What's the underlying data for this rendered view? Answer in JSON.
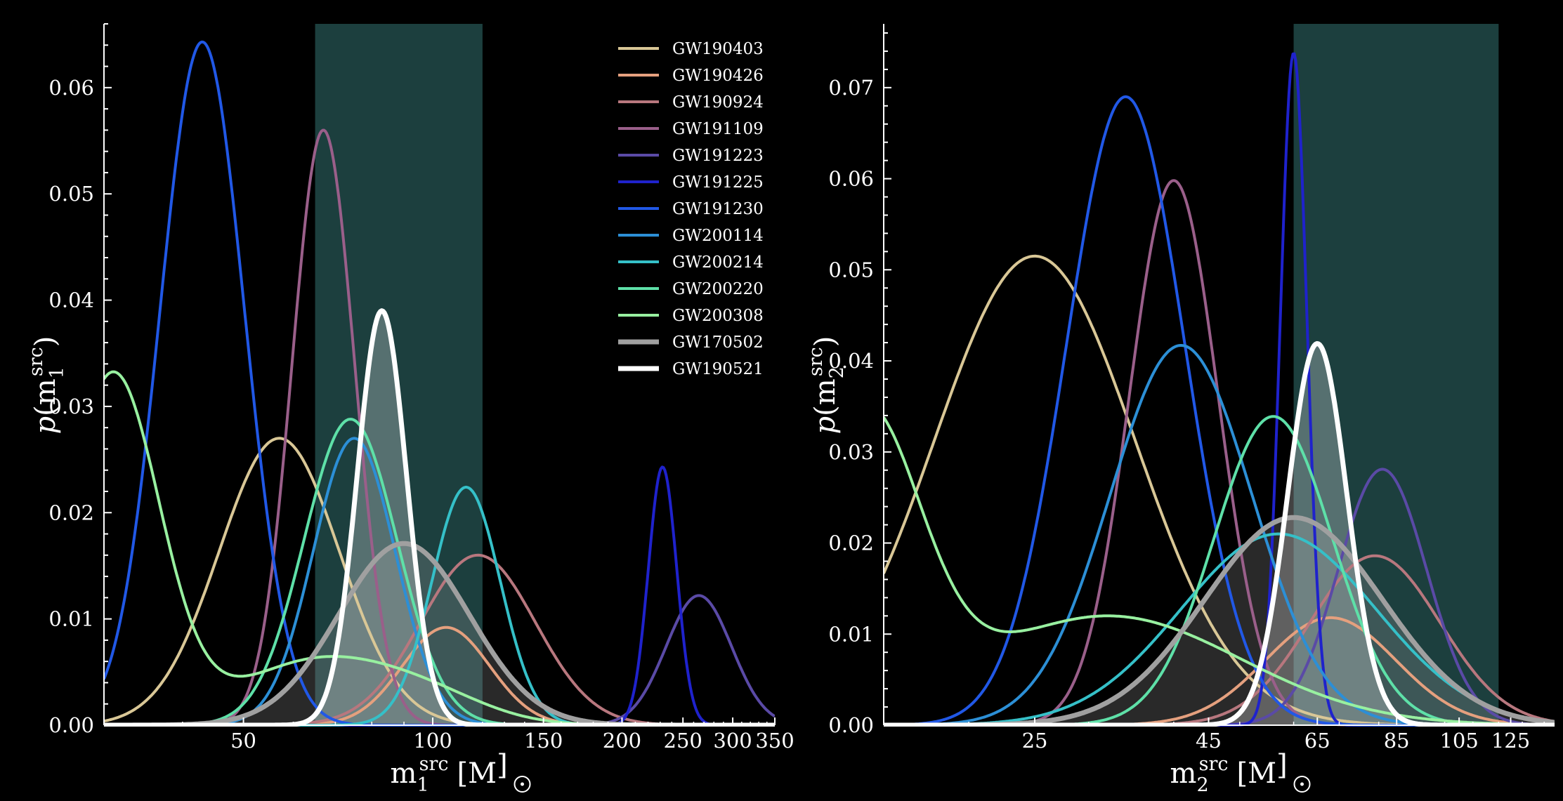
{
  "chart_data": {
    "type": "line",
    "legend": {
      "placement": "top-right of left panel",
      "entries": [
        {
          "name": "GW190403",
          "color": "#d9c796",
          "thick": false
        },
        {
          "name": "GW190426",
          "color": "#e5a07e",
          "thick": false
        },
        {
          "name": "GW190924",
          "color": "#b8777e",
          "thick": false
        },
        {
          "name": "GW191109",
          "color": "#9a5f8a",
          "thick": false
        },
        {
          "name": "GW191223",
          "color": "#5a4aa6",
          "thick": false
        },
        {
          "name": "GW191225",
          "color": "#1f22cc",
          "thick": false
        },
        {
          "name": "GW191230",
          "color": "#2158e6",
          "thick": false
        },
        {
          "name": "GW200114",
          "color": "#2c8fd6",
          "thick": false
        },
        {
          "name": "GW200214",
          "color": "#35c0c8",
          "thick": false
        },
        {
          "name": "GW200220",
          "color": "#5ee0a8",
          "thick": false
        },
        {
          "name": "GW200308",
          "color": "#98f0a0",
          "thick": false
        },
        {
          "name": "GW170502",
          "color": "#a0a0a0",
          "thick": true
        },
        {
          "name": "GW190521",
          "color": "#ffffff",
          "thick": true
        }
      ]
    },
    "panels": [
      {
        "id": "m1",
        "xlabel_main": "m",
        "xlabel_sub": "1",
        "xlabel_sup": "src",
        "xlabel_unit": "[M",
        "xlabel_close": "]",
        "ylabel_p": "p",
        "ylabel_open": "(m",
        "ylabel_sub": "1",
        "ylabel_sup": "src",
        "ylabel_close": ")",
        "xscale": "log",
        "xlim": [
          30,
          350
        ],
        "ylim": [
          0,
          0.066
        ],
        "xticks": [
          50,
          100,
          150,
          200,
          250,
          300,
          350
        ],
        "yticks": [
          0.0,
          0.01,
          0.02,
          0.03,
          0.04,
          0.05,
          0.06
        ],
        "ytick_labels": [
          "0.00",
          "0.01",
          "0.02",
          "0.03",
          "0.04",
          "0.05",
          "0.06"
        ],
        "shaded_band": [
          65,
          120
        ],
        "series": [
          {
            "name": "GW190403",
            "peaks": [
              [
                57,
                0.027,
                0.22
              ]
            ]
          },
          {
            "name": "GW190426",
            "peaks": [
              [
                105,
                0.0092,
                0.16
              ]
            ]
          },
          {
            "name": "GW190924",
            "peaks": [
              [
                118,
                0.016,
                0.21
              ]
            ]
          },
          {
            "name": "GW191109",
            "peaks": [
              [
                67,
                0.056,
                0.115
              ]
            ]
          },
          {
            "name": "GW191223",
            "peaks": [
              [
                265,
                0.0122,
                0.12
              ]
            ]
          },
          {
            "name": "GW191225",
            "peaks": [
              [
                232,
                0.0243,
                0.052
              ]
            ]
          },
          {
            "name": "GW191230",
            "peaks": [
              [
                43,
                0.0643,
                0.155
              ]
            ]
          },
          {
            "name": "GW200114",
            "peaks": [
              [
                75,
                0.027,
                0.15
              ]
            ]
          },
          {
            "name": "GW200214",
            "peaks": [
              [
                113,
                0.0224,
                0.125
              ]
            ]
          },
          {
            "name": "GW200220",
            "peaks": [
              [
                74,
                0.0288,
                0.17
              ]
            ]
          },
          {
            "name": "GW200308",
            "peaks": [
              [
                31,
                0.033,
                0.17
              ],
              [
                66,
                0.0061,
                0.3
              ],
              [
                100,
                0.0018,
                0.22
              ]
            ]
          },
          {
            "name": "GW170502",
            "peaks": [
              [
                90,
                0.0171,
                0.24
              ]
            ]
          },
          {
            "name": "GW190521",
            "peaks": [
              [
                83,
                0.039,
                0.09
              ]
            ]
          }
        ]
      },
      {
        "id": "m2",
        "xlabel_main": "m",
        "xlabel_sub": "2",
        "xlabel_sup": "src",
        "xlabel_unit": "[M",
        "xlabel_close": "]",
        "ylabel_p": "p",
        "ylabel_open": "(m",
        "ylabel_sub": "2",
        "ylabel_sup": "src",
        "ylabel_close": ")",
        "xscale": "log",
        "xlim": [
          15,
          145
        ],
        "ylim": [
          0,
          0.077
        ],
        "xticks": [
          25,
          45,
          65,
          85,
          105,
          125
        ],
        "yticks": [
          0.0,
          0.01,
          0.02,
          0.03,
          0.04,
          0.05,
          0.06,
          0.07
        ],
        "ytick_labels": [
          "0.00",
          "0.01",
          "0.02",
          "0.03",
          "0.04",
          "0.05",
          "0.06",
          "0.07"
        ],
        "shaded_band": [
          60,
          120
        ],
        "series": [
          {
            "name": "GW190403",
            "peaks": [
              [
                25,
                0.0515,
                0.34
              ]
            ]
          },
          {
            "name": "GW190426",
            "peaks": [
              [
                68,
                0.0118,
                0.22
              ]
            ]
          },
          {
            "name": "GW190924",
            "peaks": [
              [
                79,
                0.0186,
                0.22
              ]
            ]
          },
          {
            "name": "GW191109",
            "peaks": [
              [
                40,
                0.0598,
                0.15
              ]
            ]
          },
          {
            "name": "GW191223",
            "peaks": [
              [
                81,
                0.0281,
                0.15
              ]
            ]
          },
          {
            "name": "GW191225",
            "peaks": [
              [
                60,
                0.0738,
                0.045
              ]
            ]
          },
          {
            "name": "GW191230",
            "peaks": [
              [
                34,
                0.069,
                0.2
              ]
            ]
          },
          {
            "name": "GW200114",
            "peaks": [
              [
                41,
                0.0417,
                0.24
              ]
            ]
          },
          {
            "name": "GW200214",
            "peaks": [
              [
                57,
                0.021,
                0.33
              ]
            ]
          },
          {
            "name": "GW200220",
            "peaks": [
              [
                56,
                0.0339,
                0.2
              ]
            ]
          },
          {
            "name": "GW200308",
            "peaks": [
              [
                14,
                0.033,
                0.19
              ],
              [
                32,
                0.012,
                0.45
              ]
            ]
          },
          {
            "name": "GW170502",
            "peaks": [
              [
                60,
                0.0228,
                0.3
              ]
            ]
          },
          {
            "name": "GW190521",
            "peaks": [
              [
                65,
                0.0419,
                0.1
              ]
            ]
          }
        ]
      }
    ]
  }
}
